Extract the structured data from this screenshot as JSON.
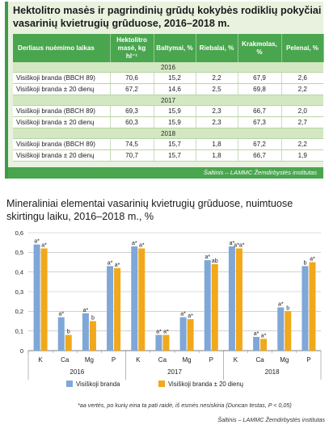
{
  "table": {
    "title": "Hektolitro masės ir pagrindinių grūdų kokybės rodiklių pokyčiai vasarinių kvietrugių grūduose, 2016–2018 m.",
    "headers": [
      "Derliaus nuėmimo laikas",
      "Hektolitro masė, kg hl⁻¹",
      "Baltymai, %",
      "Riebalai, %",
      "Krakmolas, %",
      "Pelenai, %"
    ],
    "groups": [
      {
        "year": "2016",
        "rows": [
          [
            "Visiškoji branda (BBCH 89)",
            "70,6",
            "15,2",
            "2,2",
            "67,9",
            "2,6"
          ],
          [
            "Visiškoji branda ± 20 dienų",
            "67,2",
            "14,6",
            "2,5",
            "69,8",
            "2,2"
          ]
        ]
      },
      {
        "year": "2017",
        "rows": [
          [
            "Visiškoji branda (BBCH 89)",
            "69,3",
            "15,9",
            "2,3",
            "66,7",
            "2,0"
          ],
          [
            "Visiškoji branda ± 20 dienų",
            "60,3",
            "15,9",
            "2,3",
            "67,3",
            "2,7"
          ]
        ]
      },
      {
        "year": "2018",
        "rows": [
          [
            "Visiškoji branda (BBCH 89)",
            "74,5",
            "15,7",
            "1,8",
            "67,2",
            "2,2"
          ],
          [
            "Visiškoji branda ± 20 dienų",
            "70,7",
            "15,7",
            "1,8",
            "66,7",
            "1,9"
          ]
        ]
      }
    ],
    "source": "Šaltinis – LAMMC Žemdirbystės institutas"
  },
  "chart": {
    "title": "Mineraliniai elementai vasarinių kvietrugių grūduose, nuimtuose skirtingu laiku, 2016–2018 m., %",
    "footnote": "*aa vertės, po kurių eina ta pati raidė, iš esmės nesiskiria (Duncan testas, P < 0,05)",
    "source": "Šaltinis – LAMMC Žemdirbystės institutas"
  },
  "chart_data": {
    "type": "bar",
    "y_ticks": [
      "0,6",
      "0,5",
      "0,4",
      "0,3",
      "0,2",
      "0,1",
      "0"
    ],
    "ylim": [
      0,
      0.6
    ],
    "grid": true,
    "legend_position": "bottom",
    "years": [
      "2016",
      "2017",
      "2018"
    ],
    "categories": [
      "K",
      "Ca",
      "Mg",
      "P"
    ],
    "series": [
      {
        "name": "Visiškoji branda",
        "color": "#7fa7d8",
        "values": [
          [
            0.54,
            0.17,
            0.19,
            0.43
          ],
          [
            0.53,
            0.08,
            0.17,
            0.46
          ],
          [
            0.53,
            0.07,
            0.22,
            0.43
          ]
        ],
        "labels": [
          [
            "a*",
            "a*",
            "a*",
            "a*"
          ],
          [
            "a*",
            "a*",
            "a*",
            "a*"
          ],
          [
            "a*",
            "a*",
            "a*",
            "b"
          ]
        ]
      },
      {
        "name": "Visiškoji branda ± 20 dienų",
        "color": "#f1a81a",
        "values": [
          [
            0.52,
            0.08,
            0.15,
            0.42
          ],
          [
            0.52,
            0.08,
            0.16,
            0.44
          ],
          [
            0.52,
            0.06,
            0.2,
            0.45
          ]
        ],
        "labels": [
          [
            "a*",
            "b",
            "b",
            "a*"
          ],
          [
            "a*",
            "a*",
            "a*",
            "ab"
          ],
          [
            "a*a*",
            "a*",
            "b",
            "a*"
          ]
        ]
      }
    ]
  }
}
